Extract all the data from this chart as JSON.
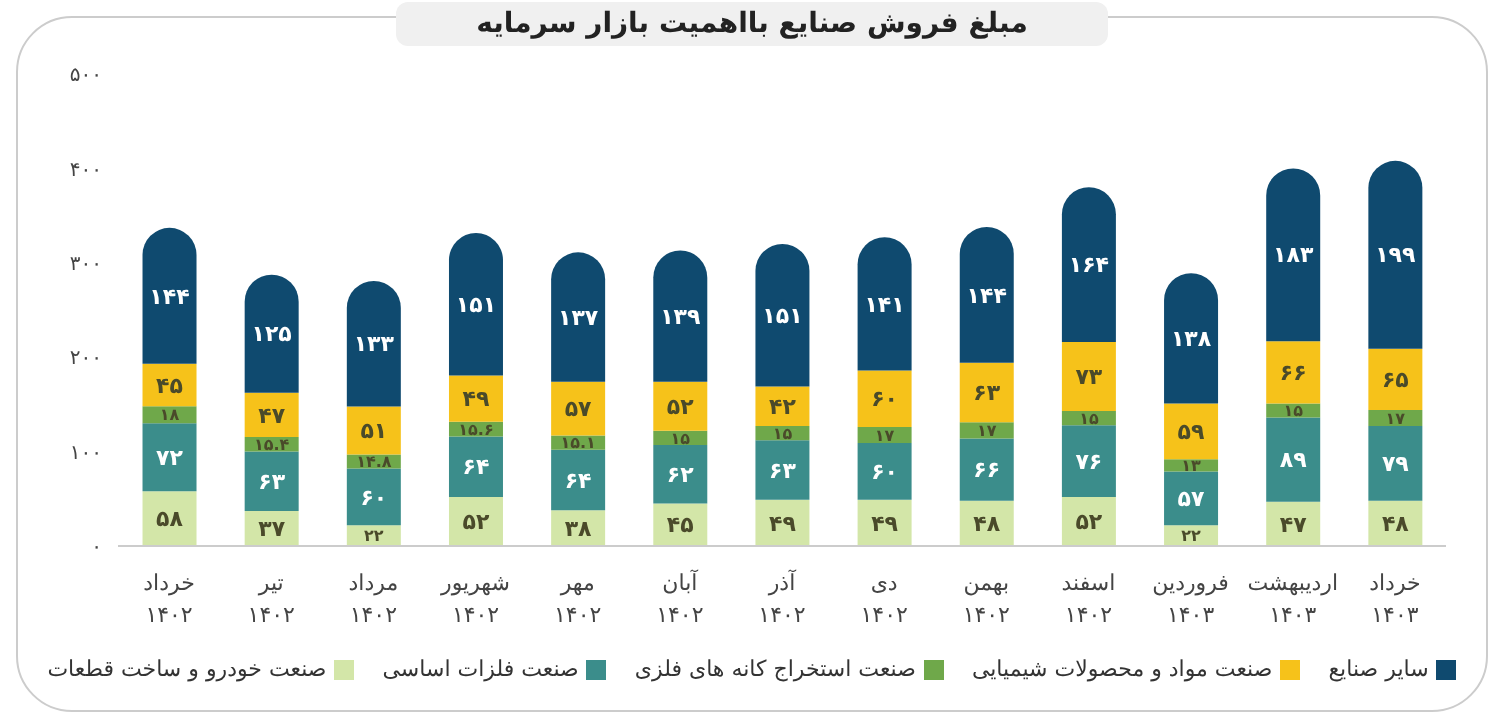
{
  "chart_data": {
    "type": "bar",
    "title": "مبلغ فروش صنایع بااهمیت بازار سرمایه",
    "stacked": true,
    "grid": false,
    "legend": "bottom",
    "categories": [
      "خرداد ۱۴۰۲",
      "تیر ۱۴۰۲",
      "مرداد ۱۴۰۲",
      "شهریور ۱۴۰۲",
      "مهر ۱۴۰۲",
      "آبان ۱۴۰۲",
      "آذر ۱۴۰۲",
      "دی ۱۴۰۲",
      "بهمن ۱۴۰۲",
      "اسفند ۱۴۰۲",
      "فروردین ۱۴۰۳",
      "اردیبهشت ۱۴۰۳",
      "خرداد ۱۴۰۳"
    ],
    "ylim": [
      0,
      500
    ],
    "yticks": [
      {
        "value": 0,
        "label": "۰"
      },
      {
        "value": 100,
        "label": "۱۰۰"
      },
      {
        "value": 200,
        "label": "۲۰۰"
      },
      {
        "value": 300,
        "label": "۳۰۰"
      },
      {
        "value": 400,
        "label": "۴۰۰"
      },
      {
        "value": 500,
        "label": "۵۰۰"
      }
    ],
    "series": [
      {
        "name": "صنعت خودرو و ساخت قطعات",
        "color": "#d3e6a8",
        "values": [
          58,
          37,
          22,
          52,
          38,
          45,
          49,
          49,
          48,
          52,
          22,
          47,
          48
        ],
        "value_labels": [
          "۵۸",
          "۳۷",
          "۲۲",
          "۵۲",
          "۳۸",
          "۴۵",
          "۴۹",
          "۴۹",
          "۴۸",
          "۵۲",
          "۲۲",
          "۴۷",
          "۴۸"
        ]
      },
      {
        "name": "صنعت فلزات اساسی",
        "color": "#3b8d8b",
        "values": [
          72,
          63,
          60,
          64,
          64,
          62,
          63,
          60,
          66,
          76,
          57,
          89,
          79
        ],
        "value_labels": [
          "۷۲",
          "۶۳",
          "۶۰",
          "۶۴",
          "۶۴",
          "۶۲",
          "۶۳",
          "۶۰",
          "۶۶",
          "۷۶",
          "۵۷",
          "۸۹",
          "۷۹"
        ]
      },
      {
        "name": "صنعت استخراج کانه های فلزی",
        "color": "#6fa84a",
        "values": [
          18,
          15.4,
          14.8,
          15.6,
          15.1,
          15,
          15,
          17,
          17,
          15,
          13,
          15,
          17
        ],
        "value_labels": [
          "۱۸",
          "۱۵.۴",
          "۱۴.۸",
          "۱۵.۶",
          "۱۵.۱",
          "۱۵",
          "۱۵",
          "۱۷",
          "۱۷",
          "۱۵",
          "۱۳",
          "۱۵",
          "۱۷"
        ]
      },
      {
        "name": "صنعت مواد و محصولات شیمیایی",
        "color": "#f6c21a",
        "values": [
          45,
          47,
          51,
          49,
          57,
          52,
          42,
          60,
          63,
          73,
          59,
          66,
          65
        ],
        "value_labels": [
          "۴۵",
          "۴۷",
          "۵۱",
          "۴۹",
          "۵۷",
          "۵۲",
          "۴۲",
          "۶۰",
          "۶۳",
          "۷۳",
          "۵۹",
          "۶۶",
          "۶۵"
        ]
      },
      {
        "name": "سایر صنایع",
        "color": "#0f4a6f",
        "values": [
          144,
          125,
          133,
          151,
          137,
          139,
          151,
          141,
          144,
          164,
          138,
          183,
          199
        ],
        "value_labels": [
          "۱۴۴",
          "۱۲۵",
          "۱۳۳",
          "۱۵۱",
          "۱۳۷",
          "۱۳۹",
          "۱۵۱",
          "۱۴۱",
          "۱۴۴",
          "۱۶۴",
          "۱۳۸",
          "۱۸۳",
          "۱۹۹"
        ]
      }
    ]
  }
}
